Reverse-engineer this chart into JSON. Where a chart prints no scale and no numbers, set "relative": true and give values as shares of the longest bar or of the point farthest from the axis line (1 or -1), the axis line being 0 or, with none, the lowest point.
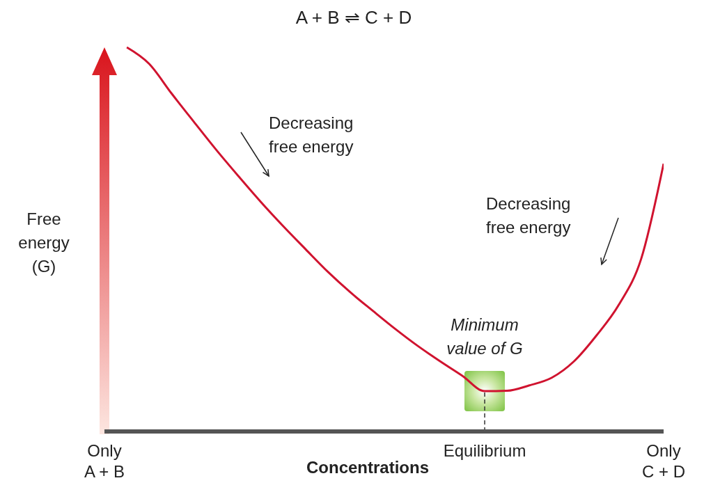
{
  "chart_data": {
    "type": "line",
    "title": "A + B ⇌ C + D",
    "xlabel": "Concentrations",
    "ylabel": "Free energy (G)",
    "relative": true,
    "categories": [
      "Only\nA + B",
      null,
      null,
      null,
      null,
      null,
      null,
      null,
      null,
      null,
      null,
      null,
      null,
      null,
      null,
      null,
      null,
      "Equilibrium",
      null,
      null,
      null,
      null,
      null,
      null,
      null,
      "Only\nC + D"
    ],
    "series": [
      {
        "color": "#d0132f",
        "values": [
          null,
          1.0,
          0.957,
          0.88,
          0.806,
          0.733,
          0.664,
          0.597,
          0.534,
          0.474,
          0.415,
          0.362,
          0.314,
          0.267,
          0.223,
          0.183,
          0.145,
          0.105,
          0.106,
          0.12,
          0.14,
          0.183,
          0.25,
          0.33,
          0.45,
          0.697
        ]
      }
    ],
    "ref_lines": [
      {
        "axis": "x",
        "value": "Equilibrium",
        "label": null,
        "color": "#333333",
        "line_style": "dashed"
      }
    ],
    "annotations": [
      "Decreasing free energy",
      "Decreasing free energy",
      {
        "text": "Minimum value of G",
        "x": "Equilibrium",
        "y": 0.105
      }
    ],
    "marker": "none",
    "line_style": "solid"
  }
}
